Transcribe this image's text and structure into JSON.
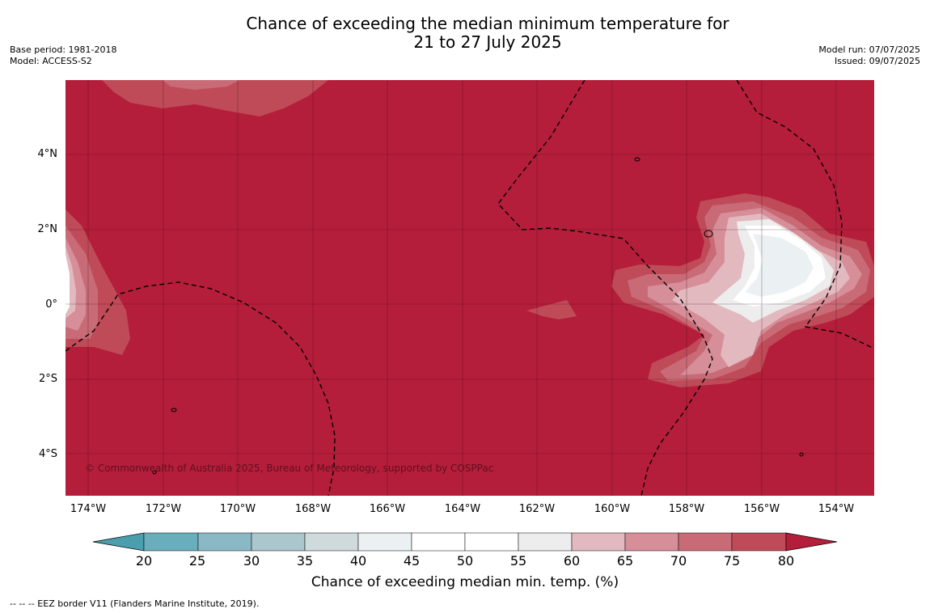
{
  "title": {
    "line1": "Chance of exceeding the median minimum temperature for",
    "line2": "21 to 27 July 2025"
  },
  "meta_left": {
    "base_period": "Base period: 1981-2018",
    "model": "Model: ACCESS-S2"
  },
  "meta_right": {
    "model_run": "Model run: 07/07/2025",
    "issued": "Issued: 09/07/2025"
  },
  "lat_labels": [
    "4°N",
    "2°N",
    "0°",
    "2°S",
    "4°S"
  ],
  "lon_labels": [
    "174°W",
    "172°W",
    "170°W",
    "168°W",
    "166°W",
    "164°W",
    "162°W",
    "160°W",
    "158°W",
    "156°W",
    "154°W"
  ],
  "credit": "© Commonwealth of Australia 2025, Bureau of Meteorology, supported by COSPPac",
  "colorbar": {
    "ticks": [
      "20",
      "25",
      "30",
      "35",
      "40",
      "45",
      "50",
      "55",
      "60",
      "65",
      "70",
      "75",
      "80"
    ],
    "colors": [
      "#4a9ead",
      "#6aadbd",
      "#8ab9c5",
      "#abc6cc",
      "#cfdadc",
      "#ebf1f3",
      "#ffffff",
      "#ffffff",
      "#ededed",
      "#e2b9bf",
      "#d68e98",
      "#c86b77",
      "#bf4b58",
      "#b41e3a"
    ],
    "label": "Chance of exceeding median min. temp. (%)"
  },
  "background_color": "#b41e3a",
  "eez_note": "--  --  -- EEZ border V11 (Flanders Marine Institute, 2019)."
}
